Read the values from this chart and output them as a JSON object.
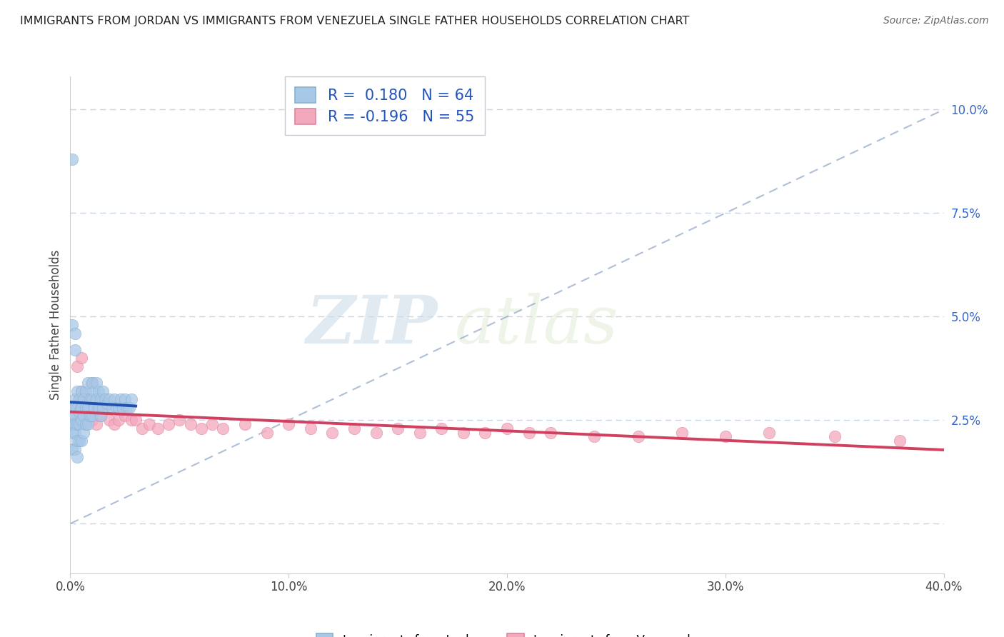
{
  "title": "IMMIGRANTS FROM JORDAN VS IMMIGRANTS FROM VENEZUELA SINGLE FATHER HOUSEHOLDS CORRELATION CHART",
  "source": "Source: ZipAtlas.com",
  "ylabel": "Single Father Households",
  "legend1_label": "Immigrants from Jordan",
  "legend2_label": "Immigrants from Venezuela",
  "r1": 0.18,
  "n1": 64,
  "r2": -0.196,
  "n2": 55,
  "color1": "#a8c8e8",
  "color2": "#f4a8bc",
  "line_color1": "#2050b0",
  "line_color2": "#d04060",
  "xmin": 0.0,
  "xmax": 0.4,
  "ymin": -0.012,
  "ymax": 0.108,
  "yticks": [
    0.0,
    0.025,
    0.05,
    0.075,
    0.1
  ],
  "ytick_labels": [
    "",
    "2.5%",
    "5.0%",
    "7.5%",
    "10.0%"
  ],
  "xticks": [
    0.0,
    0.1,
    0.2,
    0.3,
    0.4
  ],
  "xtick_labels": [
    "0.0%",
    "10.0%",
    "20.0%",
    "30.0%",
    "40.0%"
  ],
  "background_color": "#ffffff",
  "grid_color": "#c8d4e8",
  "watermark_zip": "ZIP",
  "watermark_atlas": "atlas",
  "jordan_x": [
    0.001,
    0.001,
    0.001,
    0.001,
    0.002,
    0.002,
    0.002,
    0.002,
    0.002,
    0.002,
    0.003,
    0.003,
    0.003,
    0.003,
    0.003,
    0.004,
    0.004,
    0.004,
    0.004,
    0.005,
    0.005,
    0.005,
    0.005,
    0.006,
    0.006,
    0.006,
    0.007,
    0.007,
    0.007,
    0.008,
    0.008,
    0.008,
    0.009,
    0.009,
    0.01,
    0.01,
    0.01,
    0.011,
    0.011,
    0.012,
    0.012,
    0.013,
    0.013,
    0.014,
    0.014,
    0.015,
    0.015,
    0.016,
    0.017,
    0.018,
    0.019,
    0.02,
    0.021,
    0.022,
    0.023,
    0.024,
    0.025,
    0.026,
    0.027,
    0.028,
    0.001,
    0.001,
    0.002,
    0.002
  ],
  "jordan_y": [
    0.026,
    0.024,
    0.022,
    0.018,
    0.03,
    0.028,
    0.026,
    0.024,
    0.022,
    0.018,
    0.032,
    0.028,
    0.024,
    0.02,
    0.016,
    0.03,
    0.027,
    0.024,
    0.02,
    0.032,
    0.028,
    0.025,
    0.02,
    0.03,
    0.026,
    0.022,
    0.032,
    0.028,
    0.024,
    0.034,
    0.028,
    0.024,
    0.03,
    0.026,
    0.034,
    0.03,
    0.026,
    0.032,
    0.028,
    0.034,
    0.03,
    0.032,
    0.028,
    0.03,
    0.026,
    0.032,
    0.028,
    0.03,
    0.029,
    0.03,
    0.028,
    0.03,
    0.028,
    0.028,
    0.03,
    0.028,
    0.03,
    0.028,
    0.028,
    0.03,
    0.088,
    0.048,
    0.046,
    0.042
  ],
  "venezuela_x": [
    0.001,
    0.002,
    0.003,
    0.003,
    0.004,
    0.005,
    0.005,
    0.006,
    0.007,
    0.008,
    0.009,
    0.01,
    0.011,
    0.012,
    0.014,
    0.016,
    0.018,
    0.02,
    0.022,
    0.025,
    0.028,
    0.03,
    0.033,
    0.036,
    0.04,
    0.045,
    0.05,
    0.055,
    0.06,
    0.065,
    0.07,
    0.08,
    0.09,
    0.1,
    0.11,
    0.12,
    0.13,
    0.14,
    0.15,
    0.16,
    0.17,
    0.18,
    0.19,
    0.2,
    0.21,
    0.22,
    0.24,
    0.26,
    0.28,
    0.3,
    0.32,
    0.35,
    0.38,
    0.005,
    0.01
  ],
  "venezuela_y": [
    0.028,
    0.026,
    0.038,
    0.024,
    0.03,
    0.026,
    0.032,
    0.028,
    0.024,
    0.03,
    0.026,
    0.025,
    0.028,
    0.024,
    0.026,
    0.028,
    0.025,
    0.024,
    0.025,
    0.026,
    0.025,
    0.025,
    0.023,
    0.024,
    0.023,
    0.024,
    0.025,
    0.024,
    0.023,
    0.024,
    0.023,
    0.024,
    0.022,
    0.024,
    0.023,
    0.022,
    0.023,
    0.022,
    0.023,
    0.022,
    0.023,
    0.022,
    0.022,
    0.023,
    0.022,
    0.022,
    0.021,
    0.021,
    0.022,
    0.021,
    0.022,
    0.021,
    0.02,
    0.04,
    0.034
  ]
}
